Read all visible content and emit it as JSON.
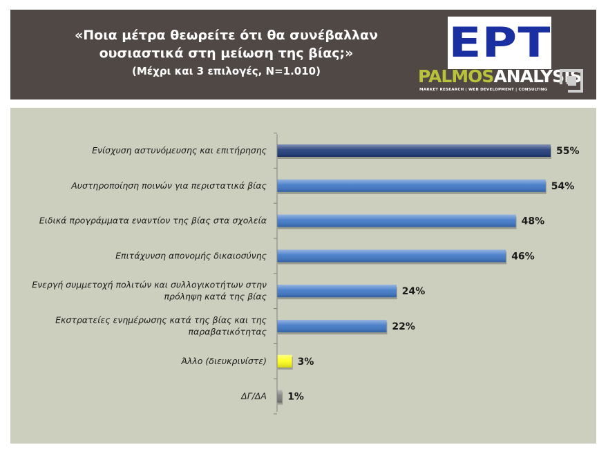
{
  "header": {
    "title_line1": "«Ποια μέτρα θεωρείτε ότι θα συνέβαλλαν",
    "title_line2": "ουσιαστικά στη μείωση της βίας;»",
    "subtitle": "(Μέχρι και 3 επιλογές, N=1.010)",
    "ert_logo_text": "ΕΡΤ",
    "palmos_logo_a": "PALMOS",
    "palmos_logo_b": "ANALYSIS",
    "palmos_tagline": "MARKET RESEARCH | WEB DEVELOPMENT | CONSULTING"
  },
  "chart_data": {
    "type": "bar",
    "orientation": "horizontal",
    "categories": [
      [
        "Ενίσχυση αστυνόμευσης και επιτήρησης"
      ],
      [
        "Αυστηροποίηση ποινών για περιστατικά βίας"
      ],
      [
        "Ειδικά προγράμματα εναντίον της βίας στα σχολεία"
      ],
      [
        "Επιτάχυνση απονομής δικαιοσύνης"
      ],
      [
        "Ενεργή συμμετοχή πολιτών και συλλογικοτήτων στην",
        "πρόληψη κατά της βίας"
      ],
      [
        "Εκστρατείες ενημέρωσης κατά της βίας και της",
        "παραβατικότητας"
      ],
      [
        "Άλλο (διευκρινίστε)"
      ],
      [
        "ΔΓ/ΔΑ"
      ]
    ],
    "values": [
      55,
      54,
      48,
      46,
      24,
      22,
      3,
      1
    ],
    "value_labels": [
      "55%",
      "54%",
      "48%",
      "46%",
      "24%",
      "22%",
      "3%",
      "1%"
    ],
    "bar_colors": [
      "#1d3a78",
      "#3d76c6",
      "#3d76c6",
      "#3d76c6",
      "#3d76c6",
      "#3d76c6",
      "#ffff1a",
      "#7d7d7d"
    ],
    "xlim": [
      0,
      60
    ],
    "grid": false,
    "legend": "none"
  }
}
